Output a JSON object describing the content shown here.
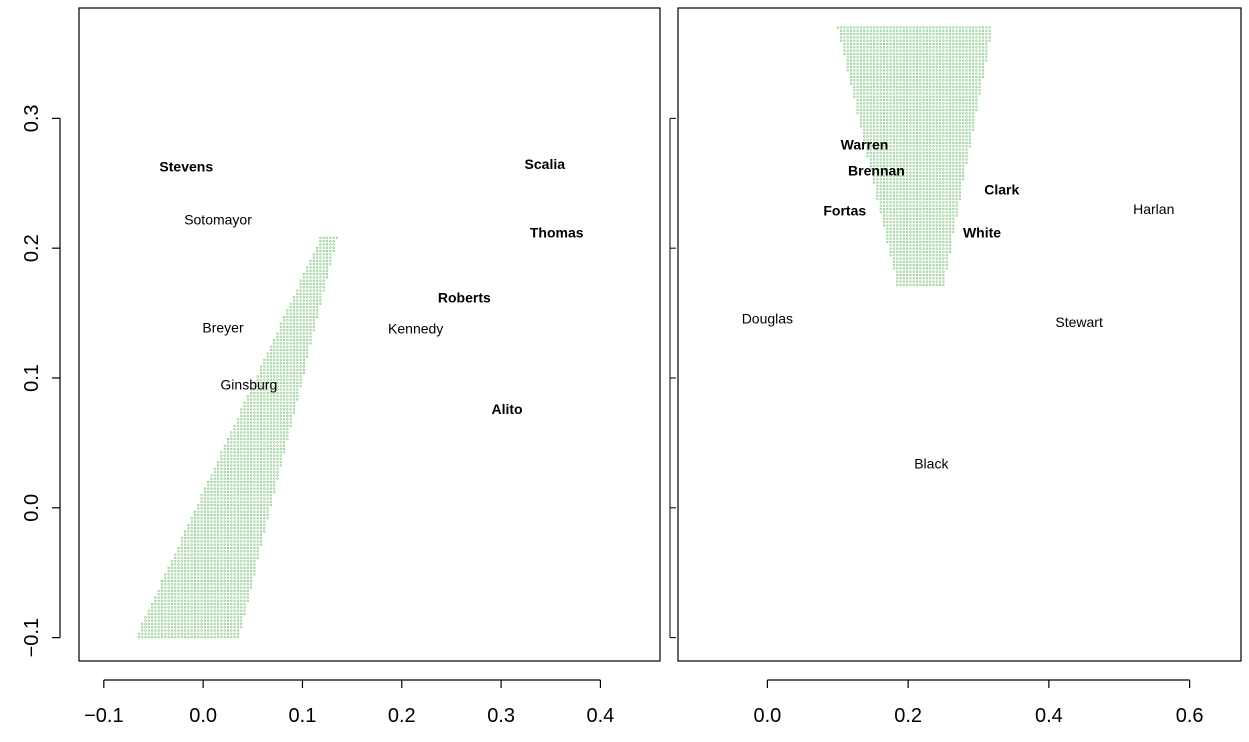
{
  "chart_data": [
    {
      "type": "scatter",
      "title": "",
      "xlabel": "",
      "ylabel": "",
      "xlim": [
        -0.125,
        0.46
      ],
      "ylim": [
        -0.118,
        0.385
      ],
      "x_ticks": [
        -0.1,
        0.0,
        0.1,
        0.2,
        0.3,
        0.4
      ],
      "x_tick_labels": [
        "−0.1",
        "0.0",
        "0.1",
        "0.2",
        "0.3",
        "0.4"
      ],
      "y_ticks": [
        -0.1,
        0.0,
        0.1,
        0.2,
        0.3
      ],
      "y_tick_labels": [
        "−0.1",
        "0.0",
        "0.1",
        "0.2",
        "0.3"
      ],
      "grid": false,
      "region": {
        "color": "#4daf4a",
        "polygon": [
          [
            -0.068,
            -0.1
          ],
          [
            0.036,
            -0.1
          ],
          [
            0.135,
            0.208
          ],
          [
            0.118,
            0.208
          ]
        ]
      },
      "points": [
        {
          "label": "Stevens",
          "x": -0.017,
          "y": 0.263,
          "bold": true
        },
        {
          "label": "Sotomayor",
          "x": 0.015,
          "y": 0.222,
          "bold": false
        },
        {
          "label": "Breyer",
          "x": 0.02,
          "y": 0.139,
          "bold": false
        },
        {
          "label": "Ginsburg",
          "x": 0.046,
          "y": 0.095,
          "bold": false
        },
        {
          "label": "Scalia",
          "x": 0.344,
          "y": 0.265,
          "bold": true
        },
        {
          "label": "Thomas",
          "x": 0.356,
          "y": 0.212,
          "bold": true
        },
        {
          "label": "Roberts",
          "x": 0.263,
          "y": 0.162,
          "bold": true
        },
        {
          "label": "Kennedy",
          "x": 0.214,
          "y": 0.138,
          "bold": false
        },
        {
          "label": "Alito",
          "x": 0.306,
          "y": 0.076,
          "bold": true
        }
      ]
    },
    {
      "type": "scatter",
      "title": "",
      "xlabel": "",
      "ylabel": "",
      "xlim": [
        -0.127,
        0.673
      ],
      "ylim": [
        -0.118,
        0.385
      ],
      "x_ticks": [
        0.0,
        0.2,
        0.4,
        0.6
      ],
      "x_tick_labels": [
        "0.0",
        "0.2",
        "0.4",
        "0.6"
      ],
      "y_ticks": [
        -0.1,
        0.0,
        0.1,
        0.2,
        0.3
      ],
      "y_tick_labels": [],
      "grid": false,
      "region": {
        "color": "#4daf4a",
        "polygon": [
          [
            0.1,
            0.37
          ],
          [
            0.32,
            0.37
          ],
          [
            0.25,
            0.17
          ],
          [
            0.185,
            0.17
          ]
        ]
      },
      "points": [
        {
          "label": "Warren",
          "x": 0.138,
          "y": 0.28,
          "bold": true
        },
        {
          "label": "Brennan",
          "x": 0.155,
          "y": 0.26,
          "bold": true
        },
        {
          "label": "Clark",
          "x": 0.333,
          "y": 0.245,
          "bold": true
        },
        {
          "label": "Fortas",
          "x": 0.11,
          "y": 0.229,
          "bold": true
        },
        {
          "label": "White",
          "x": 0.305,
          "y": 0.212,
          "bold": true
        },
        {
          "label": "Harlan",
          "x": 0.549,
          "y": 0.23,
          "bold": false
        },
        {
          "label": "Douglas",
          "x": 0.0,
          "y": 0.146,
          "bold": false
        },
        {
          "label": "Stewart",
          "x": 0.443,
          "y": 0.143,
          "bold": false
        },
        {
          "label": "Black",
          "x": 0.233,
          "y": 0.034,
          "bold": false
        }
      ]
    }
  ]
}
